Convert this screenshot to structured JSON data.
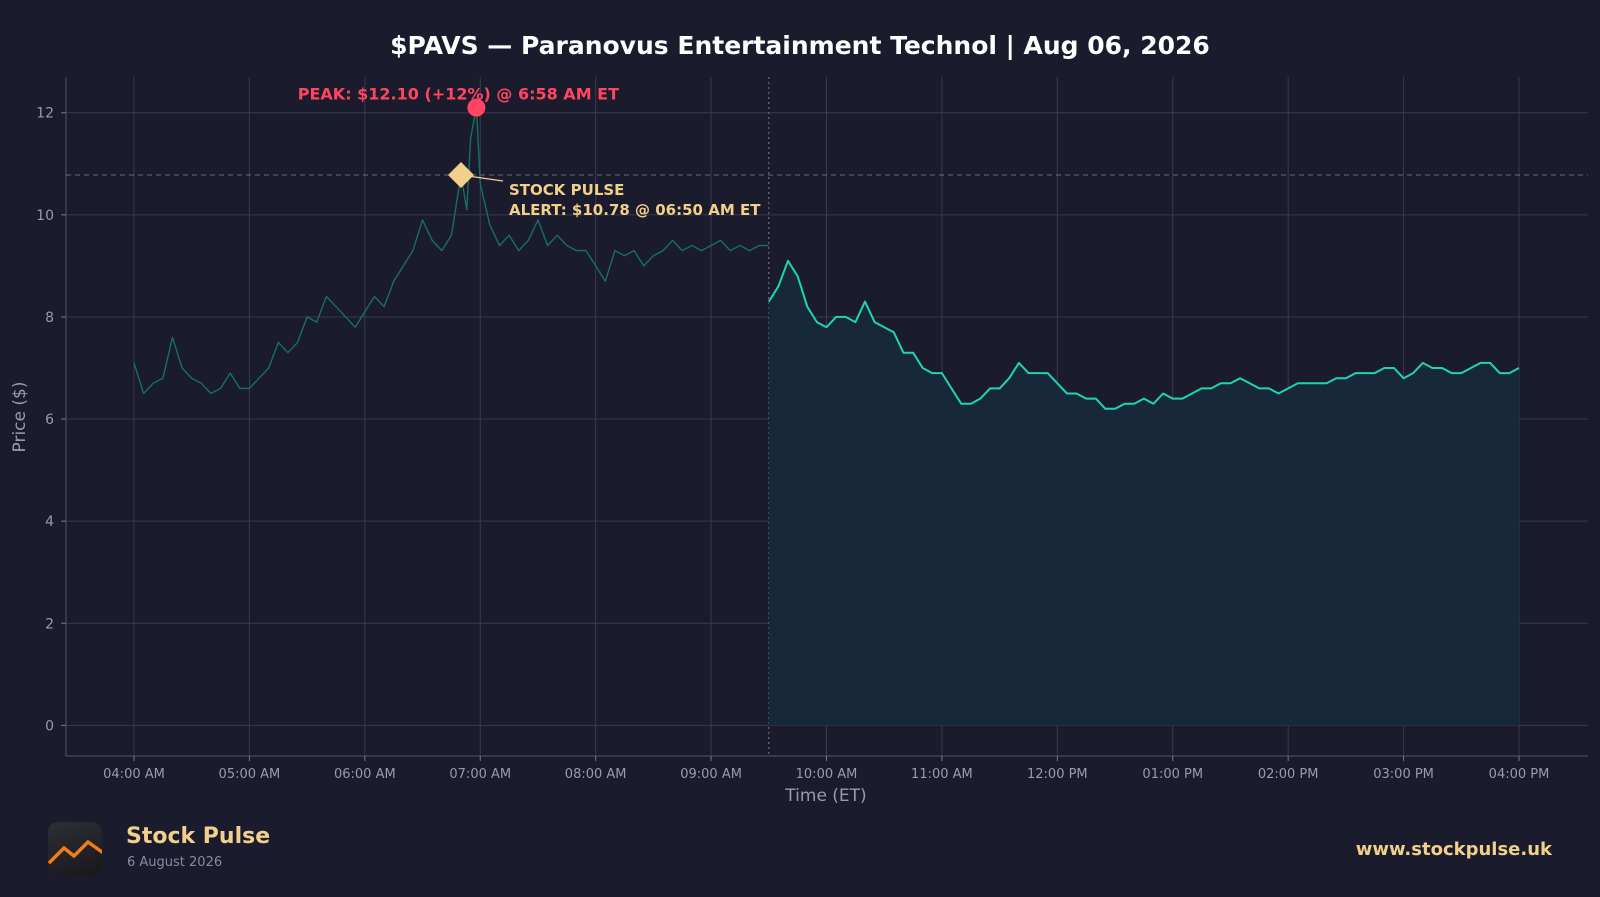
{
  "colors": {
    "background": "#1b1b2e",
    "grid": "#3a3a50",
    "axis_text": "#9a9aa8",
    "premarket_line": "#16705f",
    "regular_line": "#1fd6ac",
    "area_fill": "#17283a",
    "peak": "#ff4560",
    "alert": "#f2cf8a",
    "title": "#ffffff"
  },
  "chart_data": {
    "type": "line",
    "title": "$PAVS — Paranovus Entertainment Technol  |  Aug 06, 2026",
    "xlabel": "Time (ET)",
    "ylabel": "Price ($)",
    "ylim": [
      -0.6,
      12.7
    ],
    "y_ticks": [
      0,
      2,
      4,
      6,
      8,
      10,
      12
    ],
    "x_ticks": [
      "04:00 AM",
      "05:00 AM",
      "06:00 AM",
      "07:00 AM",
      "08:00 AM",
      "09:00 AM",
      "10:00 AM",
      "11:00 AM",
      "12:00 PM",
      "01:00 PM",
      "02:00 PM",
      "03:00 PM",
      "04:00 PM"
    ],
    "grid": true,
    "market_open": "09:30 AM",
    "series": [
      {
        "segment": "pre-market",
        "points": [
          [
            "04:00 AM",
            7.1
          ],
          [
            "04:05 AM",
            6.5
          ],
          [
            "04:10 AM",
            6.7
          ],
          [
            "04:15 AM",
            6.8
          ],
          [
            "04:20 AM",
            7.6
          ],
          [
            "04:25 AM",
            7.0
          ],
          [
            "04:30 AM",
            6.8
          ],
          [
            "04:35 AM",
            6.7
          ],
          [
            "04:40 AM",
            6.5
          ],
          [
            "04:45 AM",
            6.6
          ],
          [
            "04:50 AM",
            6.9
          ],
          [
            "04:55 AM",
            6.6
          ],
          [
            "05:00 AM",
            6.6
          ],
          [
            "05:05 AM",
            6.8
          ],
          [
            "05:10 AM",
            7.0
          ],
          [
            "05:15 AM",
            7.5
          ],
          [
            "05:20 AM",
            7.3
          ],
          [
            "05:25 AM",
            7.5
          ],
          [
            "05:30 AM",
            8.0
          ],
          [
            "05:35 AM",
            7.9
          ],
          [
            "05:40 AM",
            8.4
          ],
          [
            "05:45 AM",
            8.2
          ],
          [
            "05:50 AM",
            8.0
          ],
          [
            "05:55 AM",
            7.8
          ],
          [
            "06:00 AM",
            8.1
          ],
          [
            "06:05 AM",
            8.4
          ],
          [
            "06:10 AM",
            8.2
          ],
          [
            "06:15 AM",
            8.7
          ],
          [
            "06:20 AM",
            9.0
          ],
          [
            "06:25 AM",
            9.3
          ],
          [
            "06:30 AM",
            9.9
          ],
          [
            "06:35 AM",
            9.5
          ],
          [
            "06:40 AM",
            9.3
          ],
          [
            "06:45 AM",
            9.6
          ],
          [
            "06:50 AM",
            10.78
          ],
          [
            "06:53 AM",
            10.1
          ],
          [
            "06:55 AM",
            11.5
          ],
          [
            "06:58 AM",
            12.1
          ],
          [
            "07:00 AM",
            10.6
          ],
          [
            "07:05 AM",
            9.8
          ],
          [
            "07:10 AM",
            9.4
          ],
          [
            "07:15 AM",
            9.6
          ],
          [
            "07:20 AM",
            9.3
          ],
          [
            "07:25 AM",
            9.5
          ],
          [
            "07:30 AM",
            9.9
          ],
          [
            "07:35 AM",
            9.4
          ],
          [
            "07:40 AM",
            9.6
          ],
          [
            "07:45 AM",
            9.4
          ],
          [
            "07:50 AM",
            9.3
          ],
          [
            "07:55 AM",
            9.3
          ],
          [
            "08:00 AM",
            9.0
          ],
          [
            "08:05 AM",
            8.7
          ],
          [
            "08:10 AM",
            9.3
          ],
          [
            "08:15 AM",
            9.2
          ],
          [
            "08:20 AM",
            9.3
          ],
          [
            "08:25 AM",
            9.0
          ],
          [
            "08:30 AM",
            9.2
          ],
          [
            "08:35 AM",
            9.3
          ],
          [
            "08:40 AM",
            9.5
          ],
          [
            "08:45 AM",
            9.3
          ],
          [
            "08:50 AM",
            9.4
          ],
          [
            "08:55 AM",
            9.3
          ],
          [
            "09:00 AM",
            9.4
          ],
          [
            "09:05 AM",
            9.5
          ],
          [
            "09:10 AM",
            9.3
          ],
          [
            "09:15 AM",
            9.4
          ],
          [
            "09:20 AM",
            9.3
          ],
          [
            "09:25 AM",
            9.4
          ],
          [
            "09:30 AM",
            9.4
          ]
        ]
      },
      {
        "segment": "regular",
        "points": [
          [
            "09:30 AM",
            8.3
          ],
          [
            "09:35 AM",
            8.6
          ],
          [
            "09:40 AM",
            9.1
          ],
          [
            "09:45 AM",
            8.8
          ],
          [
            "09:50 AM",
            8.2
          ],
          [
            "09:55 AM",
            7.9
          ],
          [
            "10:00 AM",
            7.8
          ],
          [
            "10:05 AM",
            8.0
          ],
          [
            "10:10 AM",
            8.0
          ],
          [
            "10:15 AM",
            7.9
          ],
          [
            "10:20 AM",
            8.3
          ],
          [
            "10:25 AM",
            7.9
          ],
          [
            "10:30 AM",
            7.8
          ],
          [
            "10:35 AM",
            7.7
          ],
          [
            "10:40 AM",
            7.3
          ],
          [
            "10:45 AM",
            7.3
          ],
          [
            "10:50 AM",
            7.0
          ],
          [
            "10:55 AM",
            6.9
          ],
          [
            "11:00 AM",
            6.9
          ],
          [
            "11:05 AM",
            6.6
          ],
          [
            "11:10 AM",
            6.3
          ],
          [
            "11:15 AM",
            6.3
          ],
          [
            "11:20 AM",
            6.4
          ],
          [
            "11:25 AM",
            6.6
          ],
          [
            "11:30 AM",
            6.6
          ],
          [
            "11:35 AM",
            6.8
          ],
          [
            "11:40 AM",
            7.1
          ],
          [
            "11:45 AM",
            6.9
          ],
          [
            "11:50 AM",
            6.9
          ],
          [
            "11:55 AM",
            6.9
          ],
          [
            "12:00 PM",
            6.7
          ],
          [
            "12:05 PM",
            6.5
          ],
          [
            "12:10 PM",
            6.5
          ],
          [
            "12:15 PM",
            6.4
          ],
          [
            "12:20 PM",
            6.4
          ],
          [
            "12:25 PM",
            6.2
          ],
          [
            "12:30 PM",
            6.2
          ],
          [
            "12:35 PM",
            6.3
          ],
          [
            "12:40 PM",
            6.3
          ],
          [
            "12:45 PM",
            6.4
          ],
          [
            "12:50 PM",
            6.3
          ],
          [
            "12:55 PM",
            6.5
          ],
          [
            "01:00 PM",
            6.4
          ],
          [
            "01:05 PM",
            6.4
          ],
          [
            "01:10 PM",
            6.5
          ],
          [
            "01:15 PM",
            6.6
          ],
          [
            "01:20 PM",
            6.6
          ],
          [
            "01:25 PM",
            6.7
          ],
          [
            "01:30 PM",
            6.7
          ],
          [
            "01:35 PM",
            6.8
          ],
          [
            "01:40 PM",
            6.7
          ],
          [
            "01:45 PM",
            6.6
          ],
          [
            "01:50 PM",
            6.6
          ],
          [
            "01:55 PM",
            6.5
          ],
          [
            "02:00 PM",
            6.6
          ],
          [
            "02:05 PM",
            6.7
          ],
          [
            "02:10 PM",
            6.7
          ],
          [
            "02:15 PM",
            6.7
          ],
          [
            "02:20 PM",
            6.7
          ],
          [
            "02:25 PM",
            6.8
          ],
          [
            "02:30 PM",
            6.8
          ],
          [
            "02:35 PM",
            6.9
          ],
          [
            "02:40 PM",
            6.9
          ],
          [
            "02:45 PM",
            6.9
          ],
          [
            "02:50 PM",
            7.0
          ],
          [
            "02:55 PM",
            7.0
          ],
          [
            "03:00 PM",
            6.8
          ],
          [
            "03:05 PM",
            6.9
          ],
          [
            "03:10 PM",
            7.1
          ],
          [
            "03:15 PM",
            7.0
          ],
          [
            "03:20 PM",
            7.0
          ],
          [
            "03:25 PM",
            6.9
          ],
          [
            "03:30 PM",
            6.9
          ],
          [
            "03:35 PM",
            7.0
          ],
          [
            "03:40 PM",
            7.1
          ],
          [
            "03:45 PM",
            7.1
          ],
          [
            "03:50 PM",
            6.9
          ],
          [
            "03:55 PM",
            6.9
          ],
          [
            "04:00 PM",
            7.0
          ]
        ]
      }
    ],
    "peak": {
      "time": "06:58 AM",
      "price": 12.1,
      "label": "PEAK: $12.10 (+12%) @ 6:58 AM ET"
    },
    "alert": {
      "time": "06:50 AM",
      "price": 10.78,
      "label_line1": "STOCK PULSE",
      "label_line2": "ALERT: $10.78 @ 06:50 AM ET"
    }
  },
  "footer": {
    "brand": "Stock Pulse",
    "date": "6 August 2026",
    "url": "www.stockpulse.uk",
    "logo_icon": "chart-line-icon"
  }
}
